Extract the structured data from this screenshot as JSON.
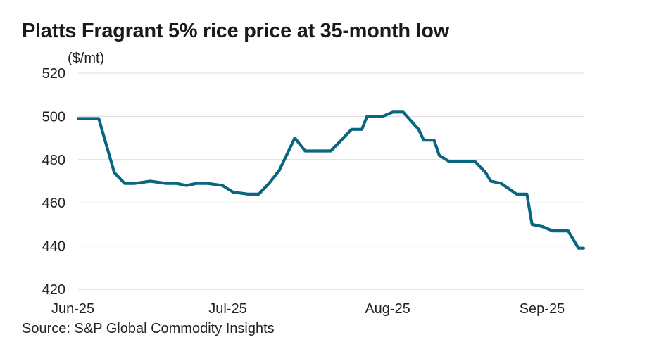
{
  "chart_data": {
    "type": "line",
    "title": "Platts Fragrant 5% rice price at 35-month low",
    "ylabel": "($/mt)",
    "source": "Source: S&P Global Commodity Insights",
    "ylim": [
      420,
      520
    ],
    "yticks": [
      420,
      440,
      460,
      480,
      500,
      520
    ],
    "x_range": [
      "2025-06-02",
      "2025-09-08"
    ],
    "xticks": [
      {
        "date": "2025-06-02",
        "label": "Jun-25"
      },
      {
        "date": "2025-07-01",
        "label": "Jul-25"
      },
      {
        "date": "2025-08-01",
        "label": "Aug-25"
      },
      {
        "date": "2025-09-01",
        "label": "Sep-25"
      }
    ],
    "grid": true,
    "colors": {
      "series": "#0a6580"
    },
    "series": [
      {
        "x": [
          "2025-06-02",
          "2025-06-06",
          "2025-06-09",
          "2025-06-11",
          "2025-06-13",
          "2025-06-16",
          "2025-06-19",
          "2025-06-21",
          "2025-06-23",
          "2025-06-25",
          "2025-06-27",
          "2025-06-30",
          "2025-07-02",
          "2025-07-05",
          "2025-07-07",
          "2025-07-09",
          "2025-07-11",
          "2025-07-14",
          "2025-07-16",
          "2025-07-18",
          "2025-07-21",
          "2025-07-23",
          "2025-07-25",
          "2025-07-27",
          "2025-07-28",
          "2025-07-31",
          "2025-08-02",
          "2025-08-04",
          "2025-08-07",
          "2025-08-08",
          "2025-08-10",
          "2025-08-11",
          "2025-08-13",
          "2025-08-16",
          "2025-08-18",
          "2025-08-20",
          "2025-08-21",
          "2025-08-23",
          "2025-08-26",
          "2025-08-28",
          "2025-08-29",
          "2025-08-31",
          "2025-09-02",
          "2025-09-03",
          "2025-09-05",
          "2025-09-07",
          "2025-09-08"
        ],
        "values": [
          499,
          499,
          474,
          469,
          469,
          470,
          469,
          469,
          468,
          469,
          469,
          468,
          465,
          464,
          464,
          469,
          475,
          490,
          484,
          484,
          484,
          489,
          494,
          494,
          500,
          500,
          502,
          502,
          494,
          489,
          489,
          482,
          479,
          479,
          479,
          474,
          470,
          469,
          464,
          464,
          450,
          449,
          447,
          447,
          447,
          439,
          439
        ]
      }
    ]
  }
}
